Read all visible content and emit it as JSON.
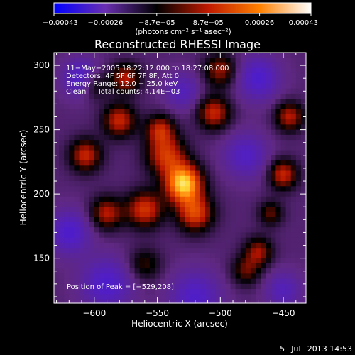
{
  "chart_data": {
    "type": "heatmap",
    "title": "Reconstructed RHESSI Image",
    "xlabel": "Heliocentric X (arcsec)",
    "ylabel": "Heliocentric Y (arcsec)",
    "xlim": [
      -632,
      -432
    ],
    "ylim": [
      115,
      310
    ],
    "x_ticks": [
      -600,
      -550,
      -500,
      -450
    ],
    "x_tick_labels": [
      "−600",
      "−550",
      "−500",
      "−450"
    ],
    "y_ticks": [
      150,
      200,
      250,
      300
    ],
    "y_tick_labels": [
      "150",
      "200",
      "250",
      "300"
    ],
    "colorbar": {
      "range": [
        -0.00043,
        0.00043
      ],
      "tick_labels": [
        "−0.00043",
        "−0.00026",
        "−8.7e−05",
        "8.7e−05",
        "0.00026",
        "0.00043"
      ],
      "unit_label": "(photons cm⁻² s⁻¹ asec⁻²)",
      "colors": [
        "#0000ff",
        "#6a2fb0",
        "#000000",
        "#c01a00",
        "#ff8000",
        "#ffffff"
      ]
    },
    "annotations": [
      "11−May−2005 18:22:12.000 to 18:27:08.000",
      "Detectors: 4F 5F 6F 7F 8F, Att 0",
      "Energy Range: 12.0 − 25.0 keV",
      "Clean     Total counts: 4.14E+03"
    ],
    "peak_label": "Position of Peak = [−529,208]",
    "peak": {
      "x": -529,
      "y": 208
    },
    "sources": [
      {
        "x": -529,
        "y": 208,
        "amp": 0.00043,
        "sigma": 10
      },
      {
        "x": -543,
        "y": 230,
        "amp": 0.00024,
        "sigma": 11
      },
      {
        "x": -548,
        "y": 250,
        "amp": 0.0002,
        "sigma": 8
      },
      {
        "x": -580,
        "y": 257,
        "amp": 0.00022,
        "sigma": 9
      },
      {
        "x": -607,
        "y": 230,
        "amp": 0.00022,
        "sigma": 9
      },
      {
        "x": -590,
        "y": 185,
        "amp": 0.0002,
        "sigma": 9
      },
      {
        "x": -560,
        "y": 188,
        "amp": 0.00024,
        "sigma": 10
      },
      {
        "x": -520,
        "y": 185,
        "amp": 0.00026,
        "sigma": 10
      },
      {
        "x": -505,
        "y": 263,
        "amp": 0.00022,
        "sigma": 9
      },
      {
        "x": -500,
        "y": 296,
        "amp": 0.00018,
        "sigma": 9
      },
      {
        "x": -575,
        "y": 290,
        "amp": 0.0002,
        "sigma": 8
      },
      {
        "x": -600,
        "y": 285,
        "amp": 0.00014,
        "sigma": 8
      },
      {
        "x": -450,
        "y": 215,
        "amp": 0.00022,
        "sigma": 8
      },
      {
        "x": -445,
        "y": 260,
        "amp": 0.0002,
        "sigma": 8
      },
      {
        "x": -470,
        "y": 155,
        "amp": 0.00018,
        "sigma": 8
      },
      {
        "x": -460,
        "y": 185,
        "amp": 0.00014,
        "sigma": 7
      },
      {
        "x": -480,
        "y": 140,
        "amp": 0.00014,
        "sigma": 8
      },
      {
        "x": -560,
        "y": 145,
        "amp": 0.00012,
        "sigma": 9
      },
      {
        "x": -610,
        "y": 290,
        "amp": -0.00018,
        "sigma": 10
      },
      {
        "x": -620,
        "y": 170,
        "amp": -0.00016,
        "sigma": 12
      },
      {
        "x": -590,
        "y": 130,
        "amp": -0.00016,
        "sigma": 14
      },
      {
        "x": -520,
        "y": 120,
        "amp": -0.00015,
        "sigma": 14
      },
      {
        "x": -470,
        "y": 290,
        "amp": -0.00016,
        "sigma": 12
      },
      {
        "x": -480,
        "y": 230,
        "amp": -0.00014,
        "sigma": 12
      },
      {
        "x": -530,
        "y": 280,
        "amp": -0.00012,
        "sigma": 10
      },
      {
        "x": -450,
        "y": 125,
        "amp": -0.00012,
        "sigma": 10
      }
    ]
  },
  "footer": {
    "timestamp": "5−Jul−2013 14:53"
  }
}
